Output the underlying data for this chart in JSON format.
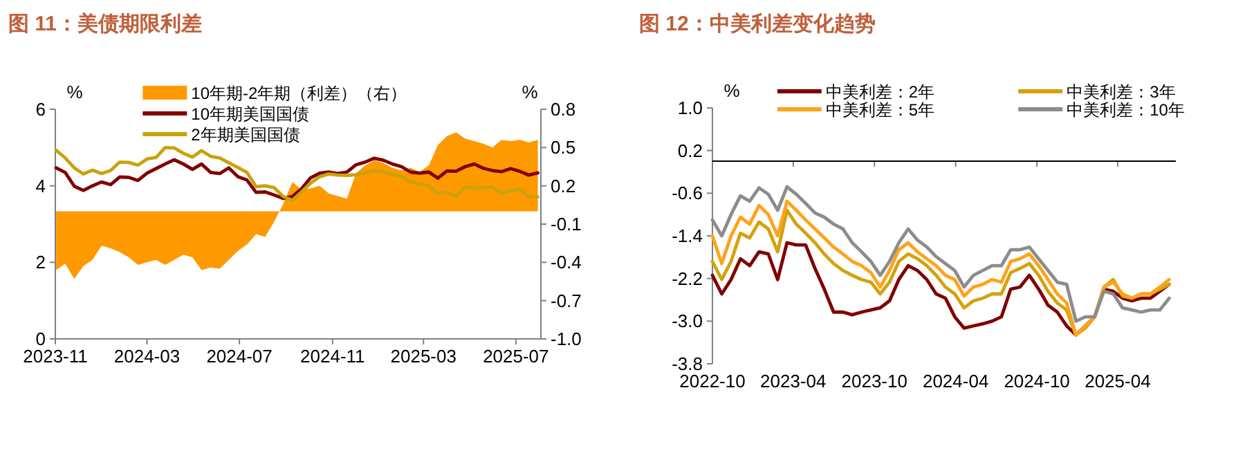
{
  "chart_data": [
    {
      "type": "line",
      "title": "图 11：美债期限利差",
      "ylabel": "%",
      "y2label": "%",
      "legend": "top",
      "grid": false,
      "x": [
        "2023-11-02",
        "2023-11-14",
        "2023-11-26",
        "2023-12-08",
        "2023-12-20",
        "2024-01-01",
        "2024-01-13",
        "2024-01-25",
        "2024-02-06",
        "2024-02-18",
        "2024-03-01",
        "2024-03-13",
        "2024-03-25",
        "2024-04-06",
        "2024-04-18",
        "2024-04-30",
        "2024-05-12",
        "2024-05-24",
        "2024-06-05",
        "2024-06-17",
        "2024-06-29",
        "2024-07-11",
        "2024-07-23",
        "2024-08-04",
        "2024-08-16",
        "2024-08-28",
        "2024-09-09",
        "2024-09-21",
        "2024-10-03",
        "2024-10-15",
        "2024-10-27",
        "2024-11-08",
        "2024-11-20",
        "2024-12-02",
        "2024-12-14",
        "2024-12-26",
        "2025-01-07",
        "2025-01-19",
        "2025-01-31",
        "2025-02-12",
        "2025-02-24",
        "2025-03-08",
        "2025-03-20",
        "2025-04-01",
        "2025-04-13",
        "2025-04-25",
        "2025-05-07",
        "2025-05-19",
        "2025-05-31",
        "2025-06-12",
        "2025-06-24",
        "2025-07-06",
        "2025-07-18",
        "2025-07-30"
      ],
      "xlim": [
        "2023-11-01",
        "2025-08-03"
      ],
      "xticks": [
        "2023-11",
        "2024-03",
        "2024-07",
        "2024-11",
        "2025-03",
        "2025-07"
      ],
      "ylim": [
        0,
        6
      ],
      "yticks": [
        0,
        2,
        4,
        6
      ],
      "y2lim": [
        -1,
        0.8
      ],
      "y2ticks": [
        0.8,
        0.5,
        0.2,
        -0.1,
        -0.4,
        -0.7,
        {
          "value": -1,
          "label": "-1.0"
        }
      ],
      "series": [
        {
          "name": "10年期-2年期（利差）（右）",
          "type": "area",
          "axis": "y2",
          "color": "#ff9900",
          "values": [
            -0.46,
            -0.41,
            -0.53,
            -0.43,
            -0.38,
            -0.27,
            -0.29,
            -0.32,
            -0.36,
            -0.42,
            -0.4,
            -0.38,
            -0.42,
            -0.38,
            -0.34,
            -0.36,
            -0.46,
            -0.44,
            -0.45,
            -0.38,
            -0.31,
            -0.26,
            -0.18,
            -0.2,
            -0.08,
            0.06,
            0.23,
            0.17,
            0.18,
            0.2,
            0.14,
            0.12,
            0.1,
            0.3,
            0.36,
            0.4,
            0.38,
            0.34,
            0.32,
            0.34,
            0.31,
            0.36,
            0.52,
            0.59,
            0.62,
            0.57,
            0.55,
            0.53,
            0.5,
            0.56,
            0.55,
            0.56,
            0.54,
            0.56
          ]
        },
        {
          "name": "10年期美国国债",
          "type": "line",
          "color": "#800000",
          "values": [
            4.47,
            4.35,
            3.99,
            3.88,
            4.0,
            4.1,
            4.03,
            4.23,
            4.22,
            4.14,
            4.33,
            4.45,
            4.57,
            4.68,
            4.57,
            4.43,
            4.57,
            4.35,
            4.32,
            4.47,
            4.24,
            4.15,
            3.83,
            3.84,
            3.76,
            3.67,
            3.72,
            3.92,
            4.21,
            4.33,
            4.36,
            4.32,
            4.36,
            4.55,
            4.62,
            4.72,
            4.67,
            4.57,
            4.5,
            4.36,
            4.33,
            4.36,
            4.2,
            4.39,
            4.38,
            4.5,
            4.57,
            4.46,
            4.4,
            4.37,
            4.45,
            4.38,
            4.28,
            4.34
          ]
        },
        {
          "name": "2年期美国国债",
          "type": "line",
          "color": "#c9a20c",
          "values": [
            4.93,
            4.73,
            4.47,
            4.31,
            4.41,
            4.32,
            4.4,
            4.62,
            4.61,
            4.54,
            4.7,
            4.74,
            5.0,
            4.99,
            4.85,
            4.75,
            4.92,
            4.77,
            4.73,
            4.6,
            4.48,
            4.35,
            3.98,
            4.0,
            3.95,
            3.72,
            3.62,
            3.84,
            4.07,
            4.24,
            4.31,
            4.28,
            4.27,
            4.29,
            4.34,
            4.39,
            4.36,
            4.3,
            4.25,
            4.1,
            4.05,
            4.0,
            3.8,
            3.84,
            3.72,
            3.97,
            3.93,
            3.95,
            3.97,
            3.8,
            3.88,
            3.91,
            3.72,
            3.71
          ]
        }
      ]
    },
    {
      "type": "line",
      "title": "图 12：中美利差变化趋势",
      "ylabel": "%",
      "legend": "top",
      "grid": false,
      "x": [
        "2022-10-01",
        "2022-10-22",
        "2022-11-12",
        "2022-12-03",
        "2022-12-24",
        "2023-01-14",
        "2023-02-04",
        "2023-02-25",
        "2023-03-18",
        "2023-04-08",
        "2023-04-29",
        "2023-05-20",
        "2023-06-10",
        "2023-07-01",
        "2023-07-22",
        "2023-08-12",
        "2023-09-02",
        "2023-09-23",
        "2023-10-14",
        "2023-11-04",
        "2023-11-25",
        "2023-12-16",
        "2024-01-06",
        "2024-01-27",
        "2024-02-17",
        "2024-03-09",
        "2024-03-30",
        "2024-04-20",
        "2024-05-11",
        "2024-06-01",
        "2024-06-22",
        "2024-07-13",
        "2024-08-03",
        "2024-08-24",
        "2024-09-14",
        "2024-10-05",
        "2024-10-26",
        "2024-11-16",
        "2024-12-07",
        "2024-12-28",
        "2025-01-18",
        "2025-02-08",
        "2025-03-01",
        "2025-03-22",
        "2025-04-12",
        "2025-05-03",
        "2025-05-24",
        "2025-06-14",
        "2025-07-05",
        "2025-07-26"
      ],
      "xlim": [
        "2022-10-01",
        "2025-08-10"
      ],
      "xticks": [
        "2022-10",
        "2023-04",
        "2023-10",
        "2024-04",
        "2024-10",
        "2025-04"
      ],
      "ylim": [
        -3.8,
        1
      ],
      "yticks": [
        {
          "value": 1,
          "label": "1.0"
        },
        0.2,
        -0.6,
        -1.4,
        -2.2,
        {
          "value": -3,
          "label": "-3.0"
        },
        -3.8
      ],
      "ref_lines": [
        {
          "axis": "y",
          "value": 0,
          "color": "#000000"
        }
      ],
      "series": [
        {
          "name": "中美利差：2年",
          "color": "#800000",
          "values": [
            -2.14,
            -2.49,
            -2.22,
            -1.83,
            -1.96,
            -1.7,
            -1.74,
            -2.22,
            -1.53,
            -1.57,
            -1.57,
            -2.01,
            -2.4,
            -2.83,
            -2.83,
            -2.88,
            -2.83,
            -2.79,
            -2.75,
            -2.62,
            -2.22,
            -1.96,
            -2.05,
            -2.22,
            -2.49,
            -2.57,
            -2.92,
            -3.13,
            -3.09,
            -3.05,
            -3.0,
            -2.92,
            -2.4,
            -2.36,
            -2.14,
            -2.4,
            -2.7,
            -2.83,
            -3.09,
            -3.26,
            -3.09,
            -2.92,
            -2.4,
            -2.44,
            -2.57,
            -2.62,
            -2.57,
            -2.57,
            -2.44,
            -2.31
          ]
        },
        {
          "name": "中美利差：3年",
          "color": "#d4a20c",
          "values": [
            -1.88,
            -2.22,
            -1.88,
            -1.35,
            -1.44,
            -1.14,
            -1.27,
            -1.7,
            -0.92,
            -1.18,
            -1.35,
            -1.53,
            -1.74,
            -1.92,
            -2.05,
            -2.14,
            -2.22,
            -2.27,
            -2.49,
            -2.27,
            -1.88,
            -1.74,
            -1.83,
            -1.96,
            -2.14,
            -2.36,
            -2.49,
            -2.75,
            -2.62,
            -2.57,
            -2.49,
            -2.49,
            -2.09,
            -2.01,
            -1.92,
            -2.14,
            -2.44,
            -2.66,
            -2.79,
            -3.26,
            -3.13,
            -2.92,
            -2.36,
            -2.22,
            -2.53,
            -2.57,
            -2.49,
            -2.49,
            -2.4,
            -2.31
          ]
        },
        {
          "name": "中美利差：5年",
          "color": "#ffa31a",
          "values": [
            -1.4,
            -1.92,
            -1.4,
            -1.05,
            -1.18,
            -0.83,
            -1.0,
            -1.4,
            -0.75,
            -0.92,
            -1.1,
            -1.27,
            -1.44,
            -1.61,
            -1.74,
            -1.88,
            -1.96,
            -2.09,
            -2.36,
            -2.05,
            -1.66,
            -1.53,
            -1.7,
            -1.83,
            -1.96,
            -2.14,
            -2.22,
            -2.53,
            -2.36,
            -2.31,
            -2.22,
            -2.27,
            -1.88,
            -1.83,
            -1.74,
            -1.96,
            -2.22,
            -2.49,
            -2.66,
            -3.26,
            -3.09,
            -2.92,
            -2.36,
            -2.27,
            -2.49,
            -2.57,
            -2.49,
            -2.49,
            -2.36,
            -2.22
          ]
        },
        {
          "name": "中美利差：10年",
          "color": "#8c8c8c",
          "values": [
            -1.1,
            -1.4,
            -1.0,
            -0.65,
            -0.75,
            -0.5,
            -0.62,
            -0.92,
            -0.48,
            -0.62,
            -0.79,
            -0.97,
            -1.05,
            -1.18,
            -1.27,
            -1.53,
            -1.7,
            -1.88,
            -2.14,
            -1.88,
            -1.53,
            -1.27,
            -1.48,
            -1.61,
            -1.79,
            -1.92,
            -2.05,
            -2.36,
            -2.14,
            -2.05,
            -1.96,
            -1.96,
            -1.66,
            -1.66,
            -1.61,
            -1.83,
            -2.05,
            -2.27,
            -2.31,
            -3.0,
            -2.92,
            -2.92,
            -2.44,
            -2.49,
            -2.75,
            -2.79,
            -2.83,
            -2.79,
            -2.79,
            -2.57
          ]
        }
      ]
    }
  ]
}
